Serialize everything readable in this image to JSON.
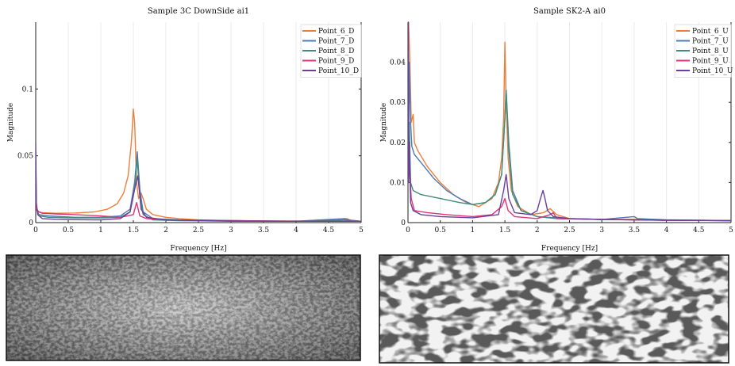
{
  "chart_data": [
    {
      "type": "line",
      "title": "Sample 3C DownSide ai1",
      "xlabel": "Frequency [Hz]",
      "ylabel": "Magnitude",
      "xlim": [
        0,
        5
      ],
      "ylim": [
        0,
        0.15
      ],
      "x_ticks": [
        "0",
        "0.5",
        "1",
        "1.5",
        "2",
        "2.5",
        "3",
        "3.5",
        "4",
        "4.5",
        "5"
      ],
      "y_ticks": [
        {
          "value": 0,
          "label": "0"
        },
        {
          "value": 0.05,
          "label": "0.05"
        },
        {
          "value": 0.1,
          "label": "0.1"
        }
      ],
      "legend_position": "top-right",
      "grid": "vertical",
      "series": [
        {
          "name": "Point_6_D",
          "color": "#ee7f3a",
          "x": [
            0,
            0.01,
            0.03,
            0.05,
            0.1,
            0.3,
            0.6,
            0.9,
            1.1,
            1.25,
            1.35,
            1.42,
            1.47,
            1.5,
            1.52,
            1.55,
            1.58,
            1.62,
            1.65,
            1.7,
            1.8,
            2.0,
            2.2,
            2.5,
            3.0,
            3.5,
            4.0,
            4.5,
            4.7,
            4.78,
            4.85,
            5.0
          ],
          "y": [
            0.02,
            0.012,
            0.009,
            0.008,
            0.0075,
            0.007,
            0.0072,
            0.008,
            0.01,
            0.014,
            0.022,
            0.035,
            0.06,
            0.085,
            0.075,
            0.03,
            0.018,
            0.022,
            0.018,
            0.01,
            0.006,
            0.004,
            0.003,
            0.002,
            0.0015,
            0.0012,
            0.0012,
            0.0012,
            0.002,
            0.003,
            0.0015,
            0.001
          ]
        },
        {
          "name": "Point_7_D",
          "color": "#4d79b5",
          "x": [
            0,
            0.01,
            0.05,
            0.2,
            0.6,
            1.0,
            1.3,
            1.45,
            1.52,
            1.56,
            1.6,
            1.65,
            1.8,
            2.2,
            3.0,
            4.0,
            4.75,
            4.8,
            5.0
          ],
          "y": [
            0.04,
            0.01,
            0.006,
            0.005,
            0.004,
            0.004,
            0.005,
            0.01,
            0.03,
            0.053,
            0.025,
            0.008,
            0.003,
            0.002,
            0.0015,
            0.001,
            0.003,
            0.002,
            0.001
          ]
        },
        {
          "name": "Point_8_D",
          "color": "#3f8c7c",
          "x": [
            0,
            0.01,
            0.05,
            0.2,
            0.6,
            1.0,
            1.3,
            1.45,
            1.52,
            1.56,
            1.6,
            1.65,
            1.8,
            2.2,
            3.0,
            4.0,
            4.75,
            4.8,
            5.0
          ],
          "y": [
            0.05,
            0.012,
            0.005,
            0.004,
            0.0035,
            0.0035,
            0.004,
            0.008,
            0.025,
            0.048,
            0.02,
            0.006,
            0.002,
            0.0015,
            0.001,
            0.001,
            0.002,
            0.0015,
            0.001
          ]
        },
        {
          "name": "Point_9_D",
          "color": "#e0337c",
          "x": [
            0,
            0.01,
            0.05,
            0.1,
            0.3,
            0.6,
            1.0,
            1.3,
            1.5,
            1.55,
            1.6,
            1.7,
            2.0,
            3.0,
            4.0,
            5.0
          ],
          "y": [
            0.015,
            0.01,
            0.008,
            0.007,
            0.0065,
            0.006,
            0.005,
            0.004,
            0.006,
            0.015,
            0.005,
            0.003,
            0.002,
            0.0015,
            0.001,
            0.001
          ]
        },
        {
          "name": "Point_10_D",
          "color": "#6a3f99",
          "x": [
            0,
            0.01,
            0.03,
            0.1,
            0.3,
            0.6,
            1.0,
            1.3,
            1.45,
            1.52,
            1.57,
            1.62,
            1.7,
            2.0,
            3.0,
            4.0,
            5.0
          ],
          "y": [
            0.06,
            0.015,
            0.006,
            0.003,
            0.0025,
            0.0022,
            0.002,
            0.003,
            0.008,
            0.025,
            0.035,
            0.01,
            0.004,
            0.002,
            0.0012,
            0.001,
            0.001
          ]
        }
      ]
    },
    {
      "type": "line",
      "title": "Sample SK2-A ai0",
      "xlabel": "Frequency [Hz]",
      "ylabel": "Magnitude",
      "xlim": [
        0,
        5
      ],
      "ylim": [
        0,
        0.05
      ],
      "x_ticks": [
        "0",
        "0.5",
        "1",
        "1.5",
        "2",
        "2.5",
        "3",
        "3.5",
        "4",
        "4.5",
        "5"
      ],
      "y_ticks": [
        {
          "value": 0,
          "label": "0"
        },
        {
          "value": 0.01,
          "label": "0.01"
        },
        {
          "value": 0.02,
          "label": "0.02"
        },
        {
          "value": 0.03,
          "label": "0.03"
        },
        {
          "value": 0.04,
          "label": "0.04"
        }
      ],
      "legend_position": "top-right",
      "grid": "vertical",
      "series": [
        {
          "name": "Point_6_U",
          "color": "#ee7f3a",
          "x": [
            0,
            0.01,
            0.03,
            0.05,
            0.08,
            0.1,
            0.15,
            0.3,
            0.5,
            0.7,
            0.9,
            1.1,
            1.3,
            1.4,
            1.45,
            1.48,
            1.5,
            1.52,
            1.55,
            1.6,
            1.7,
            1.9,
            2.1,
            2.2,
            2.3,
            2.5,
            3.0,
            3.5,
            4.0,
            4.5,
            5.0
          ],
          "y": [
            0.05,
            0.05,
            0.04,
            0.025,
            0.027,
            0.02,
            0.018,
            0.014,
            0.01,
            0.007,
            0.005,
            0.004,
            0.006,
            0.01,
            0.016,
            0.026,
            0.045,
            0.03,
            0.016,
            0.008,
            0.004,
            0.002,
            0.0025,
            0.0035,
            0.002,
            0.001,
            0.0008,
            0.0008,
            0.0006,
            0.0006,
            0.0005
          ]
        },
        {
          "name": "Point_7_U",
          "color": "#4d79b5",
          "x": [
            0,
            0.01,
            0.02,
            0.04,
            0.06,
            0.1,
            0.2,
            0.4,
            0.6,
            0.8,
            1.0,
            1.2,
            1.35,
            1.45,
            1.5,
            1.52,
            1.56,
            1.62,
            1.75,
            2.0,
            2.3,
            3.0,
            3.5,
            3.55,
            4.0,
            4.5,
            5.0
          ],
          "y": [
            0.04,
            0.02,
            0.04,
            0.025,
            0.019,
            0.017,
            0.015,
            0.011,
            0.008,
            0.006,
            0.0045,
            0.005,
            0.007,
            0.012,
            0.026,
            0.033,
            0.02,
            0.008,
            0.003,
            0.0015,
            0.001,
            0.0008,
            0.0015,
            0.001,
            0.0007,
            0.0006,
            0.0005
          ]
        },
        {
          "name": "Point_8_U",
          "color": "#3f8c7c",
          "x": [
            0,
            0.01,
            0.02,
            0.04,
            0.08,
            0.2,
            0.5,
            0.8,
            1.0,
            1.2,
            1.35,
            1.45,
            1.5,
            1.52,
            1.56,
            1.62,
            1.75,
            2.0,
            2.5,
            3.0,
            4.0,
            5.0
          ],
          "y": [
            0.03,
            0.012,
            0.025,
            0.01,
            0.008,
            0.007,
            0.006,
            0.005,
            0.0045,
            0.005,
            0.007,
            0.012,
            0.026,
            0.033,
            0.018,
            0.007,
            0.003,
            0.0015,
            0.001,
            0.0008,
            0.0006,
            0.0005
          ]
        },
        {
          "name": "Point_9_U",
          "color": "#e0337c",
          "x": [
            0,
            0.01,
            0.02,
            0.05,
            0.1,
            0.3,
            0.6,
            1.0,
            1.3,
            1.45,
            1.5,
            1.55,
            1.65,
            2.0,
            2.2,
            2.25,
            2.3,
            3.0,
            4.0,
            5.0
          ],
          "y": [
            0.02,
            0.01,
            0.015,
            0.006,
            0.003,
            0.0025,
            0.002,
            0.0015,
            0.002,
            0.004,
            0.006,
            0.003,
            0.0015,
            0.001,
            0.002,
            0.0025,
            0.001,
            0.0008,
            0.0006,
            0.0005
          ]
        },
        {
          "name": "Point_10_U",
          "color": "#6a3f99",
          "x": [
            0,
            0.005,
            0.01,
            0.02,
            0.04,
            0.08,
            0.2,
            0.5,
            1.0,
            1.4,
            1.48,
            1.52,
            1.56,
            1.65,
            1.9,
            2.0,
            2.05,
            2.09,
            2.12,
            2.16,
            2.25,
            2.5,
            3.0,
            4.0,
            5.0
          ],
          "y": [
            0.03,
            0.05,
            0.01,
            0.02,
            0.005,
            0.003,
            0.002,
            0.0015,
            0.0012,
            0.002,
            0.008,
            0.012,
            0.006,
            0.0025,
            0.002,
            0.003,
            0.006,
            0.008,
            0.006,
            0.003,
            0.0015,
            0.001,
            0.0008,
            0.0006,
            0.0005
          ]
        }
      ]
    }
  ]
}
